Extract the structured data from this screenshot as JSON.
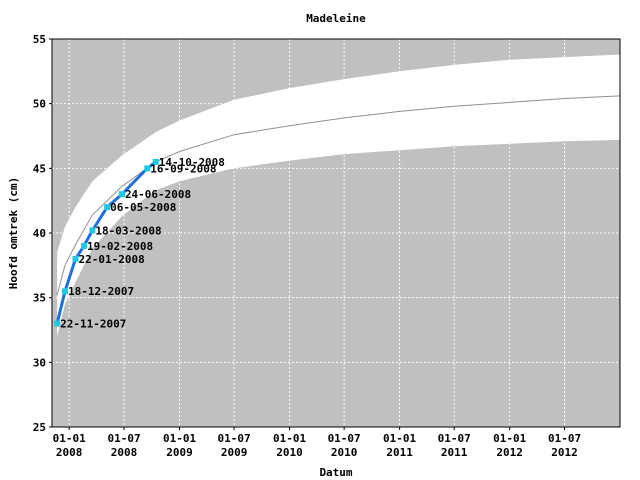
{
  "chart_data": {
    "type": "line",
    "title": "Madeleine",
    "xlabel": "Datum",
    "ylabel": "Hoofd omtrek (cm)",
    "ylim": [
      25,
      55
    ],
    "xlim": [
      "2007-11-05",
      "2013-01-01"
    ],
    "yticks": [
      "25",
      "30",
      "35",
      "40",
      "45",
      "50",
      "55"
    ],
    "xticks": [
      {
        "date": "2008-01-01",
        "line1": "01-01",
        "line2": "2008"
      },
      {
        "date": "2008-07-01",
        "line1": "01-07",
        "line2": "2008"
      },
      {
        "date": "2009-01-01",
        "line1": "01-01",
        "line2": "2009"
      },
      {
        "date": "2009-07-01",
        "line1": "01-07",
        "line2": "2009"
      },
      {
        "date": "2010-01-01",
        "line1": "01-01",
        "line2": "2010"
      },
      {
        "date": "2010-07-01",
        "line1": "01-07",
        "line2": "2010"
      },
      {
        "date": "2011-01-01",
        "line1": "01-01",
        "line2": "2011"
      },
      {
        "date": "2011-07-01",
        "line1": "01-07",
        "line2": "2011"
      },
      {
        "date": "2012-01-01",
        "line1": "01-01",
        "line2": "2012"
      },
      {
        "date": "2012-07-01",
        "line1": "01-07",
        "line2": "2012"
      }
    ],
    "grid": true,
    "colors": {
      "background": "#c0c0c0",
      "band": "#ffffff",
      "median": "#909090",
      "series": "#1e6fe0",
      "marker": "#22c8e0"
    },
    "band": {
      "x": [
        "2007-11-22",
        "2007-12-18",
        "2008-01-22",
        "2008-03-18",
        "2008-06-24",
        "2008-10-14",
        "2009-01-01",
        "2009-07-01",
        "2010-01-01",
        "2010-07-01",
        "2011-01-01",
        "2011-07-01",
        "2012-01-01",
        "2012-07-01",
        "2013-01-01"
      ],
      "upper": [
        38.5,
        40.5,
        42.0,
        44.0,
        46.0,
        47.8,
        48.7,
        50.3,
        51.2,
        51.9,
        52.5,
        53.0,
        53.4,
        53.6,
        53.8
      ],
      "lower": [
        32.0,
        34.5,
        36.2,
        38.8,
        41.3,
        43.3,
        44.0,
        45.0,
        45.6,
        46.1,
        46.4,
        46.7,
        46.9,
        47.1,
        47.2
      ],
      "median": [
        35.2,
        37.5,
        39.1,
        41.4,
        43.6,
        45.5,
        46.3,
        47.6,
        48.3,
        48.9,
        49.4,
        49.8,
        50.1,
        50.4,
        50.6
      ]
    },
    "series": [
      {
        "x": [
          "2007-11-22",
          "2007-12-18",
          "2008-01-22",
          "2008-02-19",
          "2008-03-18",
          "2008-05-06",
          "2008-06-24",
          "2008-09-16",
          "2008-10-14"
        ],
        "values": [
          33.0,
          35.5,
          38.0,
          39.0,
          40.2,
          42.0,
          43.0,
          45.0,
          45.5
        ],
        "labels": [
          "22-11-2007",
          "18-12-2007",
          "22-01-2008",
          "19-02-2008",
          "18-03-2008",
          "06-05-2008",
          "24-06-2008",
          "16-09-2008",
          "14-10-2008"
        ]
      }
    ]
  }
}
